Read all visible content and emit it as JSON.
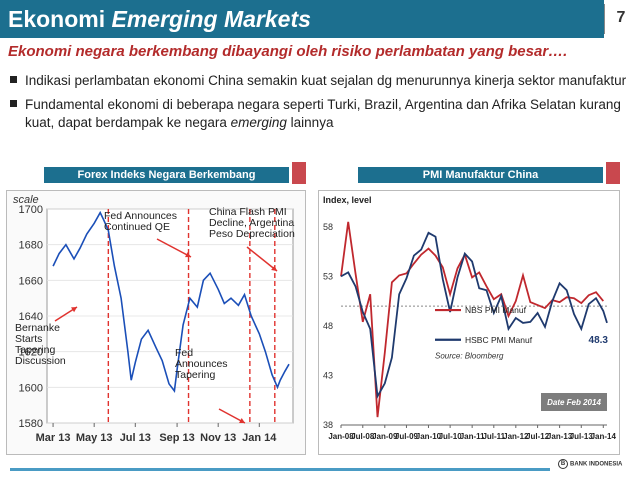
{
  "header": {
    "title_part1": "Ekonomi ",
    "title_part2": "Emerging Markets",
    "page_number": "7"
  },
  "subtitle": "Ekonomi negara berkembang dibayangi oleh risiko perlambatan yang besar….",
  "bullets": [
    {
      "text": "Indikasi perlambatan ekonomi China semakin kuat sejalan dg menurunnya kinerja sektor manufaktur"
    },
    {
      "text_before": "Fundamental ekonomi di beberapa negara seperti Turki, Brazil, Argentina dan Afrika Selatan kurang kuat, dapat berdampak ke negara ",
      "text_em": "emerging",
      "text_after": " lainnya"
    }
  ],
  "panels": {
    "left_title": "Forex Indeks Negara Berkembang",
    "right_title": "PMI Manufaktur China"
  },
  "colors": {
    "brand": "#1c6f8f",
    "accent": "#c9484e",
    "subtitle": "#b32b2b"
  },
  "footer": {
    "logo_text": "BANK INDONESIA"
  },
  "chart_data": [
    {
      "type": "line",
      "title": "",
      "ylabel": "scale",
      "ylim": [
        1580,
        1700
      ],
      "yticks": [
        1580,
        1600,
        1620,
        1640,
        1660,
        1680,
        1700
      ],
      "xticks": [
        "Mar 13",
        "May 13",
        "Jul 13",
        "Sep 13",
        "Nov 13",
        "Jan 14"
      ],
      "series": [
        {
          "name": "",
          "x": [
            "2013-03-01",
            "2013-03-10",
            "2013-03-20",
            "2013-04-01",
            "2013-04-10",
            "2013-04-20",
            "2013-05-01",
            "2013-05-10",
            "2013-05-15",
            "2013-05-22",
            "2013-05-31",
            "2013-06-10",
            "2013-06-20",
            "2013-06-25",
            "2013-07-01",
            "2013-07-10",
            "2013-07-20",
            "2013-08-01",
            "2013-08-10",
            "2013-08-20",
            "2013-08-28",
            "2013-09-01",
            "2013-09-10",
            "2013-09-20",
            "2013-10-01",
            "2013-10-10",
            "2013-10-20",
            "2013-11-01",
            "2013-11-10",
            "2013-11-20",
            "2013-12-01",
            "2013-12-10",
            "2013-12-20",
            "2014-01-01",
            "2014-01-10",
            "2014-01-20",
            "2014-01-28",
            "2014-02-01",
            "2014-02-08",
            "2014-02-14"
          ],
          "values": [
            1668,
            1675,
            1680,
            1672,
            1678,
            1686,
            1692,
            1698,
            1694,
            1688,
            1668,
            1650,
            1620,
            1604,
            1614,
            1627,
            1632,
            1622,
            1615,
            1602,
            1598,
            1610,
            1635,
            1650,
            1645,
            1660,
            1664,
            1655,
            1647,
            1650,
            1646,
            1652,
            1640,
            1630,
            1620,
            1607,
            1600,
            1604,
            1609,
            1613
          ]
        }
      ],
      "annotations": [
        {
          "text": "Fed Announces\nContinued QE"
        },
        {
          "text": "China Flash PMI\nDecline, Argentina\nPeso Depreciation"
        },
        {
          "text": "Bernanke\nStarts\nTapering\nDiscussion"
        },
        {
          "text": "Fed\nAnnounces\nTapering"
        }
      ],
      "event_dates": [
        "2013-05-22",
        "2013-09-18",
        "2013-12-18",
        "2014-01-24"
      ]
    },
    {
      "type": "line",
      "title": "Index, level",
      "ylim": [
        38,
        60
      ],
      "yticks": [
        38,
        43,
        48,
        53,
        58
      ],
      "reference_line": 50,
      "xticks": [
        "Jan-08",
        "Jul-08",
        "Jan-09",
        "Jul-09",
        "Jan-10",
        "Jul-10",
        "Jan-11",
        "Jul-11",
        "Jan-12",
        "Jul-12",
        "Jan-13",
        "Jul-13",
        "Jan-14"
      ],
      "series": [
        {
          "name": "NBS PMI Manuf",
          "color": "#c0282e",
          "x": [
            "2008-01",
            "2008-03",
            "2008-05",
            "2008-07",
            "2008-09",
            "2008-11",
            "2009-01",
            "2009-03",
            "2009-05",
            "2009-07",
            "2009-09",
            "2009-11",
            "2010-01",
            "2010-03",
            "2010-05",
            "2010-07",
            "2010-09",
            "2010-11",
            "2011-01",
            "2011-03",
            "2011-05",
            "2011-07",
            "2011-09",
            "2011-11",
            "2012-01",
            "2012-03",
            "2012-05",
            "2012-07",
            "2012-09",
            "2012-11",
            "2013-01",
            "2013-03",
            "2013-05",
            "2013-07",
            "2013-09",
            "2013-11",
            "2014-01"
          ],
          "values": [
            53.0,
            58.5,
            53.3,
            48.4,
            51.2,
            38.8,
            45.3,
            52.4,
            53.1,
            53.3,
            54.3,
            55.2,
            55.8,
            55.1,
            53.9,
            51.2,
            53.8,
            55.2,
            52.9,
            53.4,
            52.0,
            50.7,
            51.2,
            49.0,
            50.5,
            53.1,
            50.4,
            50.1,
            49.8,
            50.6,
            50.4,
            50.9,
            50.8,
            50.3,
            51.1,
            51.4,
            50.5
          ]
        },
        {
          "name": "HSBC PMI Manuf",
          "color": "#1f3a6e",
          "x": [
            "2008-01",
            "2008-03",
            "2008-05",
            "2008-07",
            "2008-09",
            "2008-11",
            "2009-01",
            "2009-03",
            "2009-05",
            "2009-07",
            "2009-09",
            "2009-11",
            "2010-01",
            "2010-03",
            "2010-05",
            "2010-07",
            "2010-09",
            "2010-11",
            "2011-01",
            "2011-03",
            "2011-05",
            "2011-07",
            "2011-09",
            "2011-11",
            "2012-01",
            "2012-03",
            "2012-05",
            "2012-07",
            "2012-09",
            "2012-11",
            "2013-01",
            "2013-03",
            "2013-05",
            "2013-07",
            "2013-09",
            "2013-11",
            "2014-01",
            "2014-02"
          ],
          "values": [
            53.0,
            53.4,
            52.0,
            49.4,
            47.7,
            40.9,
            42.2,
            44.8,
            51.2,
            52.8,
            55.1,
            55.7,
            57.4,
            57.0,
            52.7,
            49.4,
            52.9,
            55.3,
            54.5,
            51.8,
            51.6,
            49.3,
            51.0,
            47.7,
            48.8,
            48.3,
            48.4,
            49.3,
            47.9,
            50.5,
            52.3,
            51.6,
            49.2,
            47.7,
            50.2,
            50.8,
            49.5,
            48.3
          ]
        }
      ],
      "end_label": "48.3",
      "source": "Source: Bloomberg",
      "date_note": "Date Feb 2014"
    }
  ]
}
